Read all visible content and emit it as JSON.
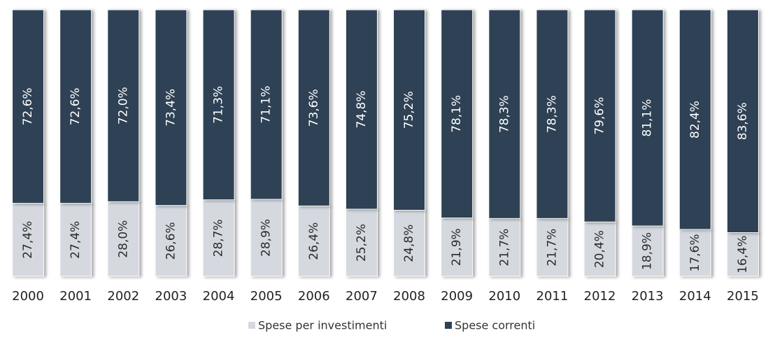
{
  "chart_data": {
    "type": "stacked_bar",
    "categories": [
      "2000",
      "2001",
      "2002",
      "2003",
      "2004",
      "2005",
      "2006",
      "2007",
      "2008",
      "2009",
      "2010",
      "2011",
      "2012",
      "2013",
      "2014",
      "2015"
    ],
    "ylim": [
      0,
      100
    ],
    "legend": "bottom",
    "series": [
      {
        "name": "Spese per investimenti",
        "color": "#d5d9df",
        "values": [
          27.4,
          27.4,
          28.0,
          26.6,
          28.7,
          28.9,
          26.4,
          25.2,
          24.8,
          21.9,
          21.7,
          21.7,
          20.4,
          18.9,
          17.6,
          16.4
        ],
        "value_labels": [
          "27,4%",
          "27,4%",
          "28,0%",
          "26,6%",
          "28,7%",
          "28,9%",
          "26,4%",
          "25,2%",
          "24,8%",
          "21,9%",
          "21,7%",
          "21,7%",
          "20,4%",
          "18,9%",
          "17,6%",
          "16,4%"
        ]
      },
      {
        "name": "Spese correnti",
        "color": "#2e4155",
        "values": [
          72.6,
          72.6,
          72.0,
          73.4,
          71.3,
          71.1,
          73.6,
          74.8,
          75.2,
          78.1,
          78.3,
          78.3,
          79.6,
          81.1,
          82.4,
          83.6
        ],
        "value_labels": [
          "72,6%",
          "72,6%",
          "72,0%",
          "73,4%",
          "71,3%",
          "71,1%",
          "73,6%",
          "74,8%",
          "75,2%",
          "78,1%",
          "78,3%",
          "78,3%",
          "79,6%",
          "81,1%",
          "82,4%",
          "83,6%"
        ]
      }
    ]
  }
}
